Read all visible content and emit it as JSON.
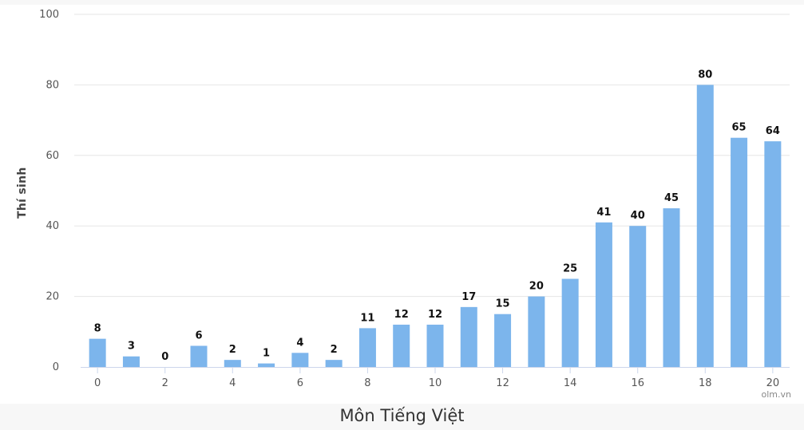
{
  "chart_data": {
    "type": "bar",
    "categories": [
      "0",
      "1",
      "2",
      "3",
      "4",
      "5",
      "6",
      "7",
      "8",
      "9",
      "10",
      "11",
      "12",
      "13",
      "14",
      "15",
      "16",
      "17",
      "18",
      "19",
      "20"
    ],
    "values": [
      8,
      3,
      0,
      6,
      2,
      1,
      4,
      2,
      11,
      12,
      12,
      17,
      15,
      20,
      25,
      41,
      40,
      45,
      80,
      65,
      64
    ],
    "x_tick_labels": [
      "0",
      "2",
      "4",
      "6",
      "8",
      "10",
      "12",
      "14",
      "16",
      "18",
      "20"
    ],
    "y_tick_labels": [
      "0",
      "20",
      "40",
      "60",
      "80",
      "100"
    ],
    "ylabel": "Thí sinh",
    "ylim": [
      0,
      100
    ],
    "grid": true,
    "bar_color": "#7cb5ec"
  },
  "caption": "Môn Tiếng Việt",
  "watermark": "olm.vn"
}
